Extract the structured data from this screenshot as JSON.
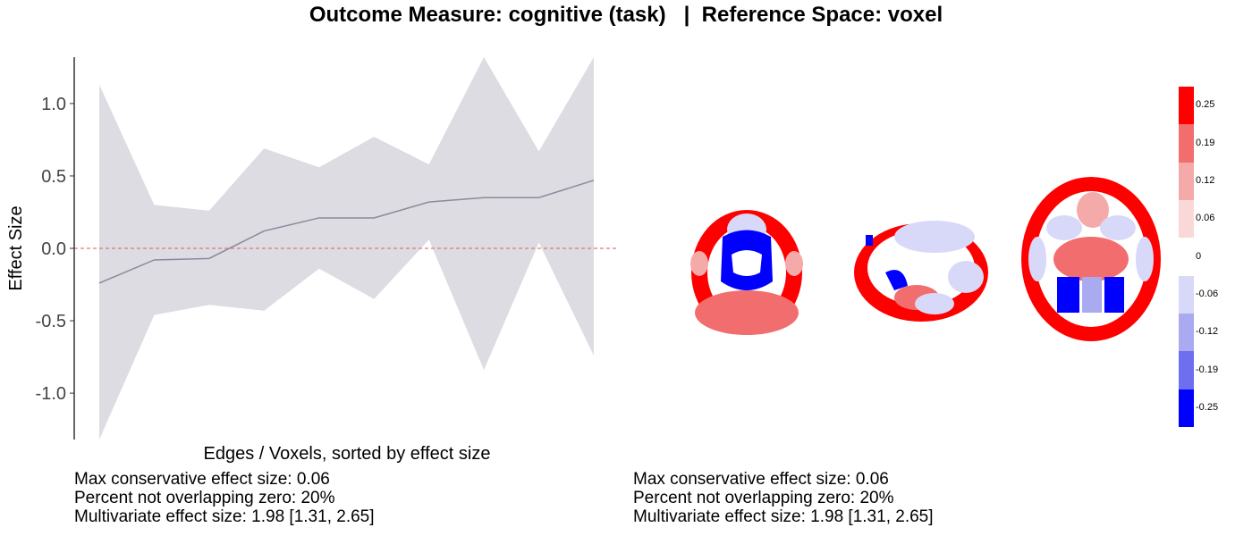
{
  "title": "Outcome Measure: cognitive (task)   |  Reference Space: voxel",
  "chart_data": {
    "type": "line",
    "x": [
      1,
      2,
      3,
      4,
      5,
      6,
      7,
      8,
      9,
      10
    ],
    "series": [
      {
        "values": [
          -0.24,
          -0.08,
          -0.07,
          0.12,
          0.21,
          0.21,
          0.32,
          0.35,
          0.35,
          0.47
        ]
      }
    ],
    "ci_lower": [
      -1.32,
      -0.46,
      -0.39,
      -0.43,
      -0.14,
      -0.35,
      0.06,
      -0.84,
      0.04,
      -0.74
    ],
    "ci_upper": [
      1.13,
      0.3,
      0.26,
      0.69,
      0.56,
      0.77,
      0.58,
      1.32,
      0.67,
      1.32
    ],
    "reference_line": 0,
    "xlabel": "Edges / Voxels, sorted by effect size",
    "ylabel": "Effect Size",
    "ylim": [
      -1.32,
      1.32
    ],
    "yticks": [
      1.0,
      0.5,
      0.0,
      -0.5,
      -1.0
    ],
    "ytick_labels": [
      "1.0",
      "0.5",
      "0.0",
      "-0.5",
      "-1.0"
    ],
    "grid": false,
    "colors": {
      "ci_band": "#dcdce2",
      "line": "#8a8a9e",
      "reference": "#e07a7a"
    }
  },
  "colorbar": {
    "labels": [
      "0.25",
      "0.19",
      "0.12",
      "0.06",
      "0",
      "-0.06",
      "-0.12",
      "-0.19",
      "-0.25"
    ],
    "colors": [
      "#ff0000",
      "#f26e6e",
      "#f5aaaa",
      "#fbd8d8",
      "#ffffff",
      "#d8d8f8",
      "#aaaaf0",
      "#6e6ef0",
      "#0000ff"
    ]
  },
  "stats_left": {
    "line1": "Max conservative effect size: 0.06",
    "line2": "Percent not overlapping zero: 20%",
    "line3": "Multivariate effect size: 1.98 [1.31, 2.65]"
  },
  "stats_right": {
    "line1": "Max conservative effect size: 0.06",
    "line2": "Percent not overlapping zero: 20%",
    "line3": "Multivariate effect size: 1.98 [1.31, 2.65]"
  }
}
